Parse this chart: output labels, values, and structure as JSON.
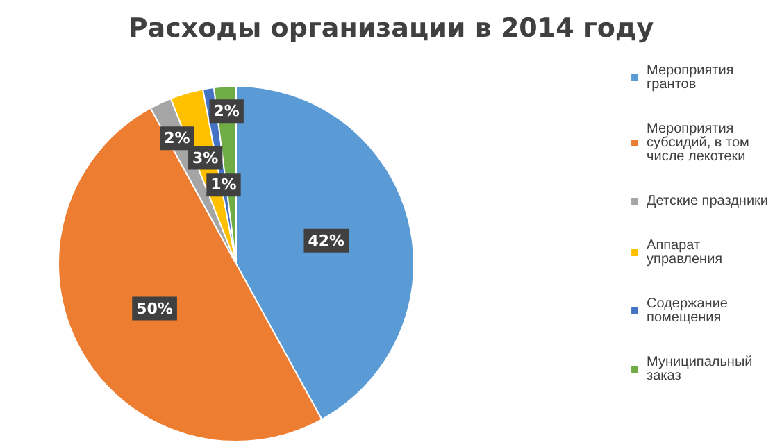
{
  "chart_data": {
    "type": "pie",
    "title": "Расходы организации в 2014 году",
    "categories": [
      "Мероприятия грантов",
      "Мероприятия субсидий, в том числе лекотеки",
      "Детские праздники",
      "Аппарат управления",
      "Содержание помещения",
      "Муниципальный заказ"
    ],
    "values": [
      42,
      50,
      2,
      3,
      1,
      2
    ],
    "colors": [
      "#5b9bd5",
      "#ed7d31",
      "#a5a5a5",
      "#ffc000",
      "#4472c4",
      "#70ad47"
    ],
    "value_labels": [
      "42%",
      "50%",
      "2%",
      "3%",
      "1%",
      "2%"
    ],
    "legend": "right"
  }
}
